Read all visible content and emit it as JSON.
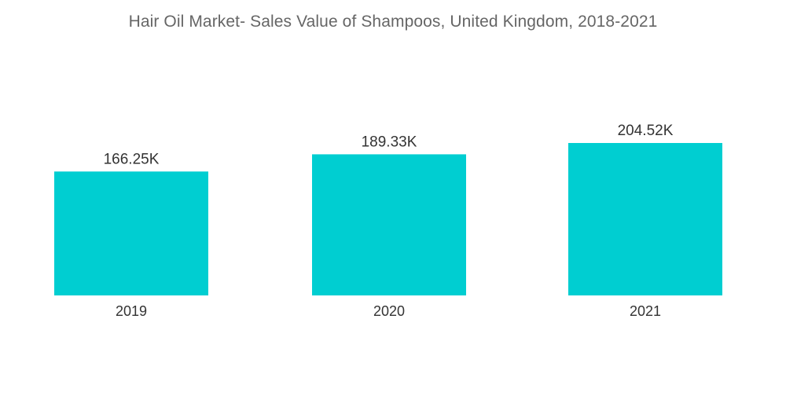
{
  "chart_data": {
    "type": "bar",
    "title": "Hair Oil Market- Sales Value of Shampoos, United Kingdom, 2018-2021",
    "categories": [
      "2019",
      "2020",
      "2021"
    ],
    "values": [
      166.25,
      189.33,
      204.52
    ],
    "value_labels": [
      "166.25K",
      "189.33K",
      "204.52K"
    ],
    "xlabel": "",
    "ylabel": "",
    "ylim": [
      0,
      250
    ],
    "grid": false,
    "legend": "none",
    "bar_color": "#00CED1"
  }
}
